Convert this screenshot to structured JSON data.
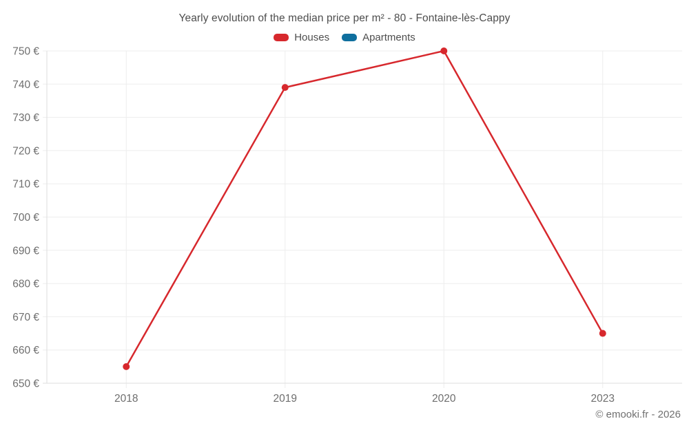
{
  "header": {
    "title": "Yearly evolution of the median price per m² - 80 - Fontaine-lès-Cappy"
  },
  "legend": [
    {
      "label": "Houses",
      "color": "#d7282d"
    },
    {
      "label": "Apartments",
      "color": "#0f6f9e"
    }
  ],
  "footer": {
    "copyright": "© emooki.fr - 2026"
  },
  "colors": {
    "grid": "#ededed",
    "axis_border": "#dedede",
    "tick_label": "#6e6e6e"
  },
  "chart_data": {
    "type": "line",
    "title": "Yearly evolution of the median price per m² - 80 - Fontaine-lès-Cappy",
    "categories": [
      "2018",
      "2019",
      "2020",
      "2023"
    ],
    "series": [
      {
        "name": "Houses",
        "color": "#d7282d",
        "values": [
          655,
          739,
          750,
          665
        ]
      },
      {
        "name": "Apartments",
        "color": "#0f6f9e",
        "values": []
      }
    ],
    "xlabel": "",
    "ylabel": "",
    "ylabel_format": "{value} €",
    "ylim": [
      650,
      750
    ],
    "ytick_step": 10,
    "grid": true,
    "legend_position": "top"
  }
}
